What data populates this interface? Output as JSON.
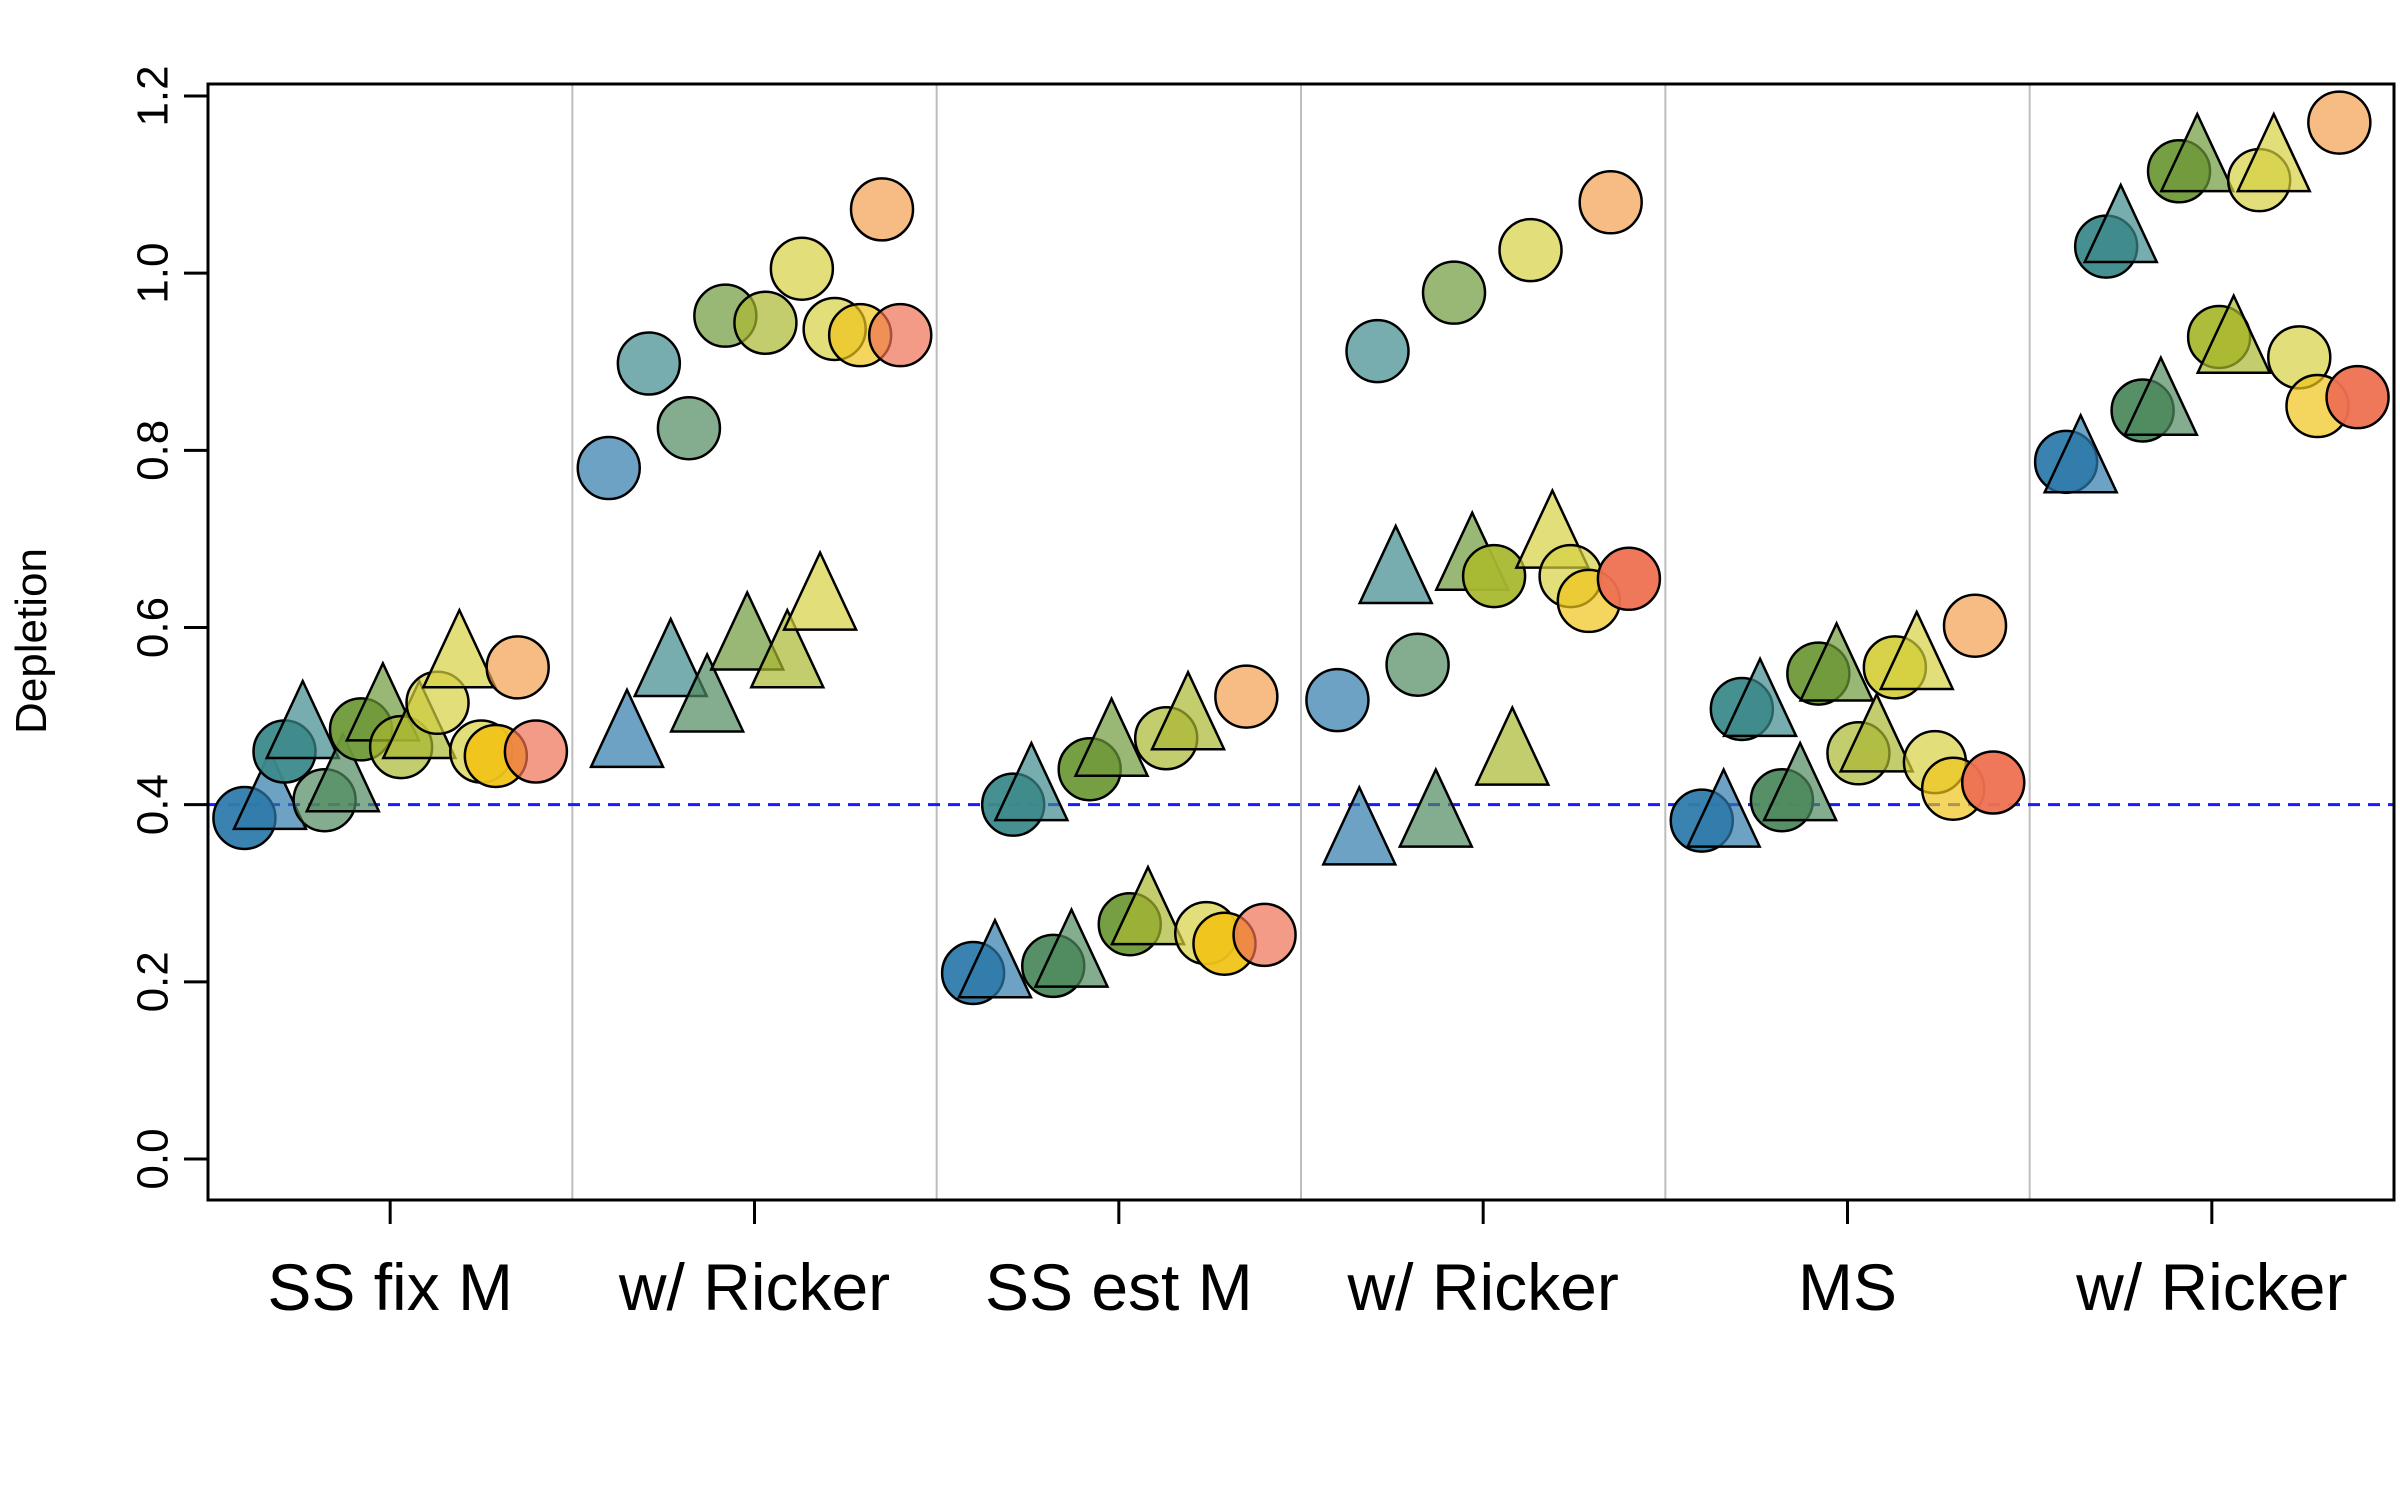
{
  "chart_data": {
    "type": "scatter",
    "xlabel": "",
    "ylabel": "Depletion",
    "ylim": [
      0,
      1.2
    ],
    "yticks": [
      "0.0",
      "0.2",
      "0.4",
      "0.6",
      "0.8",
      "1.0",
      "1.2"
    ],
    "categories": [
      "SS fix M",
      "w/ Ricker",
      "SS est M",
      "w/ Ricker",
      "MS",
      "w/ Ricker"
    ],
    "reference_line": {
      "y": 0.4,
      "style": "dashed",
      "color": "#1a1aff"
    },
    "grid": false,
    "series_colors": [
      "#2f7bab",
      "#3d8a8c",
      "#4e8a5e",
      "#6f9a3a",
      "#a9b830",
      "#d6d040",
      "#f0c419",
      "#f2a04e",
      "#ee7152"
    ],
    "marker_legend": {
      "circle": "",
      "triangle": ""
    },
    "points": [
      {
        "group": 0,
        "shape": "circle",
        "color": 0,
        "x": -0.4,
        "y": 0.385,
        "alpha": 0.95
      },
      {
        "group": 0,
        "shape": "triangle",
        "color": 0,
        "x": -0.33,
        "y": 0.41,
        "alpha": 0.7
      },
      {
        "group": 0,
        "shape": "circle",
        "color": 1,
        "x": -0.29,
        "y": 0.46,
        "alpha": 0.95
      },
      {
        "group": 0,
        "shape": "triangle",
        "color": 1,
        "x": -0.24,
        "y": 0.49,
        "alpha": 0.7
      },
      {
        "group": 0,
        "shape": "circle",
        "color": 2,
        "x": -0.18,
        "y": 0.405,
        "alpha": 0.7
      },
      {
        "group": 0,
        "shape": "triangle",
        "color": 2,
        "x": -0.13,
        "y": 0.43,
        "alpha": 0.7
      },
      {
        "group": 0,
        "shape": "circle",
        "color": 3,
        "x": -0.08,
        "y": 0.485,
        "alpha": 0.95
      },
      {
        "group": 0,
        "shape": "triangle",
        "color": 3,
        "x": -0.02,
        "y": 0.51,
        "alpha": 0.7
      },
      {
        "group": 0,
        "shape": "circle",
        "color": 4,
        "x": 0.03,
        "y": 0.465,
        "alpha": 0.7
      },
      {
        "group": 0,
        "shape": "triangle",
        "color": 4,
        "x": 0.08,
        "y": 0.49,
        "alpha": 0.7
      },
      {
        "group": 0,
        "shape": "circle",
        "color": 5,
        "x": 0.13,
        "y": 0.515,
        "alpha": 0.7
      },
      {
        "group": 0,
        "shape": "triangle",
        "color": 5,
        "x": 0.19,
        "y": 0.57,
        "alpha": 0.7
      },
      {
        "group": 0,
        "shape": "circle",
        "color": 5,
        "x": 0.25,
        "y": 0.46,
        "alpha": 0.7
      },
      {
        "group": 0,
        "shape": "circle",
        "color": 6,
        "x": 0.29,
        "y": 0.455,
        "alpha": 0.95
      },
      {
        "group": 0,
        "shape": "circle",
        "color": 7,
        "x": 0.35,
        "y": 0.555,
        "alpha": 0.7
      },
      {
        "group": 0,
        "shape": "circle",
        "color": 8,
        "x": 0.4,
        "y": 0.46,
        "alpha": 0.7
      },
      {
        "group": 1,
        "shape": "circle",
        "color": 0,
        "x": -0.4,
        "y": 0.78,
        "alpha": 0.7
      },
      {
        "group": 1,
        "shape": "triangle",
        "color": 0,
        "x": -0.35,
        "y": 0.48,
        "alpha": 0.7
      },
      {
        "group": 1,
        "shape": "circle",
        "color": 1,
        "x": -0.29,
        "y": 0.898,
        "alpha": 0.7
      },
      {
        "group": 1,
        "shape": "triangle",
        "color": 1,
        "x": -0.23,
        "y": 0.56,
        "alpha": 0.7
      },
      {
        "group": 1,
        "shape": "circle",
        "color": 2,
        "x": -0.18,
        "y": 0.825,
        "alpha": 0.7
      },
      {
        "group": 1,
        "shape": "triangle",
        "color": 2,
        "x": -0.13,
        "y": 0.52,
        "alpha": 0.7
      },
      {
        "group": 1,
        "shape": "circle",
        "color": 3,
        "x": -0.08,
        "y": 0.952,
        "alpha": 0.7
      },
      {
        "group": 1,
        "shape": "triangle",
        "color": 3,
        "x": -0.02,
        "y": 0.59,
        "alpha": 0.7
      },
      {
        "group": 1,
        "shape": "circle",
        "color": 4,
        "x": 0.03,
        "y": 0.944,
        "alpha": 0.7
      },
      {
        "group": 1,
        "shape": "triangle",
        "color": 4,
        "x": 0.09,
        "y": 0.57,
        "alpha": 0.7
      },
      {
        "group": 1,
        "shape": "circle",
        "color": 5,
        "x": 0.13,
        "y": 1.005,
        "alpha": 0.7
      },
      {
        "group": 1,
        "shape": "triangle",
        "color": 5,
        "x": 0.18,
        "y": 0.635,
        "alpha": 0.7
      },
      {
        "group": 1,
        "shape": "circle",
        "color": 5,
        "x": 0.22,
        "y": 0.937,
        "alpha": 0.7
      },
      {
        "group": 1,
        "shape": "circle",
        "color": 6,
        "x": 0.29,
        "y": 0.93,
        "alpha": 0.7
      },
      {
        "group": 1,
        "shape": "circle",
        "color": 7,
        "x": 0.35,
        "y": 1.072,
        "alpha": 0.7
      },
      {
        "group": 1,
        "shape": "circle",
        "color": 8,
        "x": 0.4,
        "y": 0.93,
        "alpha": 0.7
      },
      {
        "group": 2,
        "shape": "circle",
        "color": 1,
        "x": -0.29,
        "y": 0.4,
        "alpha": 0.95
      },
      {
        "group": 2,
        "shape": "triangle",
        "color": 1,
        "x": -0.24,
        "y": 0.42,
        "alpha": 0.7
      },
      {
        "group": 2,
        "shape": "circle",
        "color": 3,
        "x": -0.08,
        "y": 0.44,
        "alpha": 0.95
      },
      {
        "group": 2,
        "shape": "triangle",
        "color": 3,
        "x": -0.02,
        "y": 0.47,
        "alpha": 0.7
      },
      {
        "group": 2,
        "shape": "circle",
        "color": 4,
        "x": 0.13,
        "y": 0.475,
        "alpha": 0.7
      },
      {
        "group": 2,
        "shape": "triangle",
        "color": 4,
        "x": 0.19,
        "y": 0.5,
        "alpha": 0.7
      },
      {
        "group": 2,
        "shape": "circle",
        "color": 7,
        "x": 0.35,
        "y": 0.522,
        "alpha": 0.7
      },
      {
        "group": 2,
        "shape": "circle",
        "color": 0,
        "x": -0.4,
        "y": 0.21,
        "alpha": 0.95
      },
      {
        "group": 2,
        "shape": "triangle",
        "color": 0,
        "x": -0.34,
        "y": 0.22,
        "alpha": 0.7
      },
      {
        "group": 2,
        "shape": "circle",
        "color": 2,
        "x": -0.18,
        "y": 0.218,
        "alpha": 0.95
      },
      {
        "group": 2,
        "shape": "triangle",
        "color": 2,
        "x": -0.13,
        "y": 0.232,
        "alpha": 0.7
      },
      {
        "group": 2,
        "shape": "circle",
        "color": 3,
        "x": 0.03,
        "y": 0.265,
        "alpha": 0.95
      },
      {
        "group": 2,
        "shape": "triangle",
        "color": 4,
        "x": 0.08,
        "y": 0.28,
        "alpha": 0.7
      },
      {
        "group": 2,
        "shape": "circle",
        "color": 5,
        "x": 0.24,
        "y": 0.255,
        "alpha": 0.7
      },
      {
        "group": 2,
        "shape": "circle",
        "color": 6,
        "x": 0.29,
        "y": 0.243,
        "alpha": 0.95
      },
      {
        "group": 2,
        "shape": "circle",
        "color": 8,
        "x": 0.4,
        "y": 0.253,
        "alpha": 0.7
      },
      {
        "group": 3,
        "shape": "circle",
        "color": 0,
        "x": -0.4,
        "y": 0.518,
        "alpha": 0.7
      },
      {
        "group": 3,
        "shape": "triangle",
        "color": 0,
        "x": -0.34,
        "y": 0.37,
        "alpha": 0.7
      },
      {
        "group": 3,
        "shape": "circle",
        "color": 1,
        "x": -0.29,
        "y": 0.912,
        "alpha": 0.7
      },
      {
        "group": 3,
        "shape": "triangle",
        "color": 1,
        "x": -0.24,
        "y": 0.665,
        "alpha": 0.7
      },
      {
        "group": 3,
        "shape": "circle",
        "color": 2,
        "x": -0.18,
        "y": 0.558,
        "alpha": 0.7
      },
      {
        "group": 3,
        "shape": "triangle",
        "color": 2,
        "x": -0.13,
        "y": 0.39,
        "alpha": 0.7
      },
      {
        "group": 3,
        "shape": "circle",
        "color": 3,
        "x": -0.08,
        "y": 0.978,
        "alpha": 0.7
      },
      {
        "group": 3,
        "shape": "triangle",
        "color": 3,
        "x": -0.03,
        "y": 0.68,
        "alpha": 0.7
      },
      {
        "group": 3,
        "shape": "circle",
        "color": 4,
        "x": 0.03,
        "y": 0.658,
        "alpha": 0.95
      },
      {
        "group": 3,
        "shape": "triangle",
        "color": 4,
        "x": 0.08,
        "y": 0.46,
        "alpha": 0.7
      },
      {
        "group": 3,
        "shape": "circle",
        "color": 5,
        "x": 0.13,
        "y": 1.026,
        "alpha": 0.7
      },
      {
        "group": 3,
        "shape": "triangle",
        "color": 5,
        "x": 0.19,
        "y": 0.705,
        "alpha": 0.7
      },
      {
        "group": 3,
        "shape": "circle",
        "color": 5,
        "x": 0.24,
        "y": 0.658,
        "alpha": 0.7
      },
      {
        "group": 3,
        "shape": "circle",
        "color": 6,
        "x": 0.29,
        "y": 0.63,
        "alpha": 0.7
      },
      {
        "group": 3,
        "shape": "circle",
        "color": 7,
        "x": 0.35,
        "y": 1.08,
        "alpha": 0.7
      },
      {
        "group": 3,
        "shape": "circle",
        "color": 8,
        "x": 0.4,
        "y": 0.655,
        "alpha": 0.95
      },
      {
        "group": 4,
        "shape": "circle",
        "color": 0,
        "x": -0.4,
        "y": 0.382,
        "alpha": 0.95
      },
      {
        "group": 4,
        "shape": "triangle",
        "color": 0,
        "x": -0.34,
        "y": 0.39,
        "alpha": 0.7
      },
      {
        "group": 4,
        "shape": "circle",
        "color": 1,
        "x": -0.29,
        "y": 0.508,
        "alpha": 0.95
      },
      {
        "group": 4,
        "shape": "triangle",
        "color": 1,
        "x": -0.24,
        "y": 0.515,
        "alpha": 0.7
      },
      {
        "group": 4,
        "shape": "circle",
        "color": 2,
        "x": -0.18,
        "y": 0.405,
        "alpha": 0.95
      },
      {
        "group": 4,
        "shape": "triangle",
        "color": 2,
        "x": -0.13,
        "y": 0.42,
        "alpha": 0.7
      },
      {
        "group": 4,
        "shape": "circle",
        "color": 3,
        "x": -0.08,
        "y": 0.548,
        "alpha": 0.95
      },
      {
        "group": 4,
        "shape": "triangle",
        "color": 3,
        "x": -0.03,
        "y": 0.555,
        "alpha": 0.7
      },
      {
        "group": 4,
        "shape": "circle",
        "color": 4,
        "x": 0.03,
        "y": 0.458,
        "alpha": 0.7
      },
      {
        "group": 4,
        "shape": "triangle",
        "color": 4,
        "x": 0.08,
        "y": 0.475,
        "alpha": 0.7
      },
      {
        "group": 4,
        "shape": "circle",
        "color": 5,
        "x": 0.13,
        "y": 0.555,
        "alpha": 0.95
      },
      {
        "group": 4,
        "shape": "triangle",
        "color": 5,
        "x": 0.19,
        "y": 0.568,
        "alpha": 0.7
      },
      {
        "group": 4,
        "shape": "circle",
        "color": 5,
        "x": 0.24,
        "y": 0.448,
        "alpha": 0.7
      },
      {
        "group": 4,
        "shape": "circle",
        "color": 6,
        "x": 0.29,
        "y": 0.418,
        "alpha": 0.7
      },
      {
        "group": 4,
        "shape": "circle",
        "color": 7,
        "x": 0.35,
        "y": 0.602,
        "alpha": 0.7
      },
      {
        "group": 4,
        "shape": "circle",
        "color": 8,
        "x": 0.4,
        "y": 0.425,
        "alpha": 0.95
      },
      {
        "group": 5,
        "shape": "circle",
        "color": 0,
        "x": -0.4,
        "y": 0.787,
        "alpha": 0.95
      },
      {
        "group": 5,
        "shape": "triangle",
        "color": 0,
        "x": -0.36,
        "y": 0.79,
        "alpha": 0.7
      },
      {
        "group": 5,
        "shape": "circle",
        "color": 1,
        "x": -0.29,
        "y": 1.03,
        "alpha": 0.95
      },
      {
        "group": 5,
        "shape": "triangle",
        "color": 1,
        "x": -0.25,
        "y": 1.05,
        "alpha": 0.7
      },
      {
        "group": 5,
        "shape": "circle",
        "color": 2,
        "x": -0.19,
        "y": 0.845,
        "alpha": 0.95
      },
      {
        "group": 5,
        "shape": "triangle",
        "color": 2,
        "x": -0.14,
        "y": 0.855,
        "alpha": 0.7
      },
      {
        "group": 5,
        "shape": "circle",
        "color": 3,
        "x": -0.09,
        "y": 1.115,
        "alpha": 0.95
      },
      {
        "group": 5,
        "shape": "triangle",
        "color": 3,
        "x": -0.04,
        "y": 1.13,
        "alpha": 0.7
      },
      {
        "group": 5,
        "shape": "circle",
        "color": 4,
        "x": 0.02,
        "y": 0.928,
        "alpha": 0.95
      },
      {
        "group": 5,
        "shape": "triangle",
        "color": 4,
        "x": 0.06,
        "y": 0.925,
        "alpha": 0.7
      },
      {
        "group": 5,
        "shape": "circle",
        "color": 5,
        "x": 0.13,
        "y": 1.105,
        "alpha": 0.7
      },
      {
        "group": 5,
        "shape": "triangle",
        "color": 5,
        "x": 0.17,
        "y": 1.13,
        "alpha": 0.7
      },
      {
        "group": 5,
        "shape": "circle",
        "color": 5,
        "x": 0.24,
        "y": 0.905,
        "alpha": 0.7
      },
      {
        "group": 5,
        "shape": "circle",
        "color": 6,
        "x": 0.29,
        "y": 0.85,
        "alpha": 0.7
      },
      {
        "group": 5,
        "shape": "circle",
        "color": 7,
        "x": 0.35,
        "y": 1.17,
        "alpha": 0.7
      },
      {
        "group": 5,
        "shape": "circle",
        "color": 8,
        "x": 0.4,
        "y": 0.86,
        "alpha": 0.95
      }
    ]
  }
}
